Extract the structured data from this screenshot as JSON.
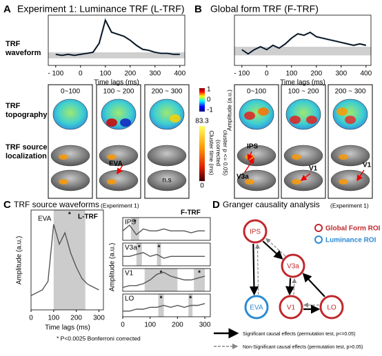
{
  "rows": [
    "TRF waveform",
    "TRF topography",
    "TRF source localization"
  ],
  "topography": {
    "a": {
      "windows": [
        "0~100",
        "100 ~ 200",
        "200 ~ 300"
      ],
      "source_labels": [
        "EVA",
        "n.s"
      ]
    },
    "b": {
      "windows": [
        "0~100",
        "100 ~ 200",
        "200 ~ 300"
      ],
      "source_labels": [
        "IPS",
        "V3a",
        "V1",
        "V1"
      ]
    }
  },
  "colorbar_amplitude": {
    "ticks": [
      1,
      0,
      -1
    ],
    "label": "Amplitude (a.u.)"
  },
  "colorbar_cluster": {
    "max": 83.3,
    "min": 0,
    "label_lines": [
      "Cluster time (ms)",
      "(corrected",
      "cluster p <= 0.05)"
    ]
  },
  "footnote": "*   P<0.0025 Bonferroni corrected",
  "chart_data": [
    {
      "type": "line",
      "panel": "A",
      "title": "Experiment 1: Luminance TRF (L-TRF)",
      "xlabel": "Time lags (ms)",
      "x": [
        -100,
        -75,
        -50,
        -25,
        0,
        25,
        50,
        75,
        100,
        125,
        150,
        175,
        200,
        225,
        250,
        275,
        300,
        325,
        350,
        375,
        400
      ],
      "values": [
        0.1,
        0,
        0.1,
        0,
        0.1,
        0.2,
        0.3,
        1.2,
        3.5,
        2.3,
        2.1,
        1.9,
        1.5,
        1.0,
        0.6,
        0.5,
        0.3,
        0.2,
        0.2,
        0.1,
        0.1
      ],
      "color": "#000000",
      "xlim": [
        -130,
        420
      ],
      "ylim": [
        -1,
        4
      ],
      "xticks": [
        {
          "value": -100,
          "label": "- 100"
        },
        0,
        100,
        200,
        300,
        400
      ]
    },
    {
      "type": "line",
      "panel": "B",
      "title": "Global form TRF (F-TRF)",
      "xlabel": "Time lags (ms)",
      "x": [
        -100,
        -75,
        -50,
        -25,
        0,
        25,
        50,
        75,
        100,
        125,
        150,
        175,
        200,
        225,
        250,
        275,
        300,
        325,
        350,
        375,
        400
      ],
      "values": [
        0.1,
        -0.2,
        0.1,
        0.3,
        0.1,
        0.4,
        0.2,
        0.5,
        0.9,
        1.2,
        1.1,
        1.3,
        1.0,
        0.9,
        0.8,
        0.7,
        0.6,
        0.5,
        0.4,
        0.5,
        0.4
      ],
      "color": "#000000",
      "xlim": [
        -130,
        420
      ],
      "ylim": [
        -1,
        2.5
      ],
      "xticks": [
        {
          "value": -100,
          "label": "- 100"
        },
        0,
        100,
        200,
        300,
        400
      ]
    },
    {
      "type": "line",
      "panel": "C",
      "title": "TRF source waveforms",
      "subtitle": "(Experiment 1)",
      "label": "EVA",
      "tag": "L-TRF",
      "ylabel": "Amplitude (a.u.)",
      "xlabel": "Time lags (ms)",
      "x": [
        0,
        25,
        50,
        75,
        100,
        125,
        150,
        175,
        200,
        225,
        250,
        275,
        300
      ],
      "values": [
        0,
        0.1,
        0.2,
        0.5,
        2.5,
        1.8,
        2.2,
        1.5,
        1.0,
        0.6,
        0.4,
        0.3,
        0.2
      ],
      "color": "#555555",
      "xlim": [
        0,
        320
      ],
      "ylim": [
        -0.5,
        3
      ],
      "xticks": [
        0,
        100,
        200,
        300
      ],
      "highlights": [
        [
          100,
          240
        ]
      ],
      "marker": "*"
    },
    {
      "type": "line",
      "label": "IPS",
      "tag": "F-TRF",
      "ylabel": "Amplitude (a.u.)",
      "x": [
        0,
        25,
        50,
        75,
        100,
        125,
        150,
        175,
        200,
        225,
        250,
        275,
        300
      ],
      "values": [
        0.5,
        0.8,
        0.3,
        0.6,
        0.5,
        0.5,
        0.6,
        0.5,
        0.5,
        0.5,
        0.4,
        0.5,
        0.5
      ],
      "color": "#555555",
      "xlim": [
        0,
        320
      ],
      "ylim": [
        0,
        1.2
      ],
      "highlights": [
        [
          30,
          60
        ]
      ],
      "marker": "*"
    },
    {
      "type": "line",
      "label": "V3a",
      "x": [
        0,
        25,
        50,
        75,
        100,
        125,
        150,
        175,
        200,
        225,
        250,
        275,
        300
      ],
      "values": [
        0.5,
        0.5,
        0.6,
        0.7,
        0.5,
        0.6,
        0.4,
        0.5,
        0.5,
        0.5,
        0.5,
        0.5,
        0.5
      ],
      "color": "#555555",
      "xlim": [
        0,
        320
      ],
      "ylim": [
        0,
        1.2
      ],
      "highlights": [
        [
          50,
          70
        ],
        [
          125,
          140
        ]
      ],
      "marker": "*"
    },
    {
      "type": "line",
      "label": "V1",
      "x": [
        0,
        25,
        50,
        75,
        100,
        125,
        150,
        175,
        200,
        225,
        250,
        275,
        300
      ],
      "values": [
        0.2,
        0.3,
        0.3,
        0.4,
        0.6,
        0.9,
        1.0,
        0.8,
        0.7,
        0.6,
        0.6,
        0.7,
        0.8
      ],
      "color": "#555555",
      "xlim": [
        0,
        320
      ],
      "ylim": [
        0,
        1.2
      ],
      "highlights": [
        [
          80,
          200
        ],
        [
          260,
          300
        ]
      ],
      "marker": "*"
    },
    {
      "type": "line",
      "label": "LO",
      "x": [
        0,
        25,
        50,
        75,
        100,
        125,
        150,
        175,
        200,
        225,
        250,
        275,
        300
      ],
      "values": [
        0.3,
        0.3,
        0.4,
        0.4,
        0.5,
        0.5,
        0.6,
        0.5,
        0.6,
        0.5,
        0.6,
        0.6,
        0.7
      ],
      "color": "#555555",
      "xlim": [
        0,
        320
      ],
      "ylim": [
        0,
        1.2
      ],
      "highlights": [
        [
          130,
          150
        ],
        [
          240,
          255
        ]
      ],
      "marker": "*",
      "xticks": [
        0,
        100,
        200,
        300
      ]
    }
  ],
  "granger": {
    "panel": "D",
    "title": "Granger causality analysis",
    "subtitle": "(Experiment 1)",
    "colors": {
      "global": "#c0282d",
      "luminance": "#2a8ad4"
    },
    "legend": {
      "global": "Global Form ROI",
      "luminance": "Luminance ROI"
    },
    "nodes": [
      {
        "label": "IPS",
        "group": "global"
      },
      {
        "label": "V3a",
        "group": "global"
      },
      {
        "label": "EVA",
        "group": "luminance"
      },
      {
        "label": "V1",
        "group": "global"
      },
      {
        "label": "LO",
        "group": "global"
      }
    ],
    "edges": [
      {
        "from": 0,
        "to": 1,
        "significant": true
      },
      {
        "from": 1,
        "to": 0,
        "significant": false
      },
      {
        "from": 0,
        "to": 2,
        "significant": true
      },
      {
        "from": 2,
        "to": 0,
        "significant": false
      },
      {
        "from": 1,
        "to": 3,
        "significant": true
      },
      {
        "from": 3,
        "to": 1,
        "significant": false
      },
      {
        "from": 3,
        "to": 4,
        "significant": true
      },
      {
        "from": 4,
        "to": 3,
        "significant": false
      },
      {
        "from": 4,
        "to": 1,
        "significant": true
      }
    ],
    "edge_legend": {
      "significant": "Significant causal effects (permutation test, p<=0.05)",
      "nonsignificant": "Non-Significant causal effects (permutation test, p>0.05)"
    }
  }
}
